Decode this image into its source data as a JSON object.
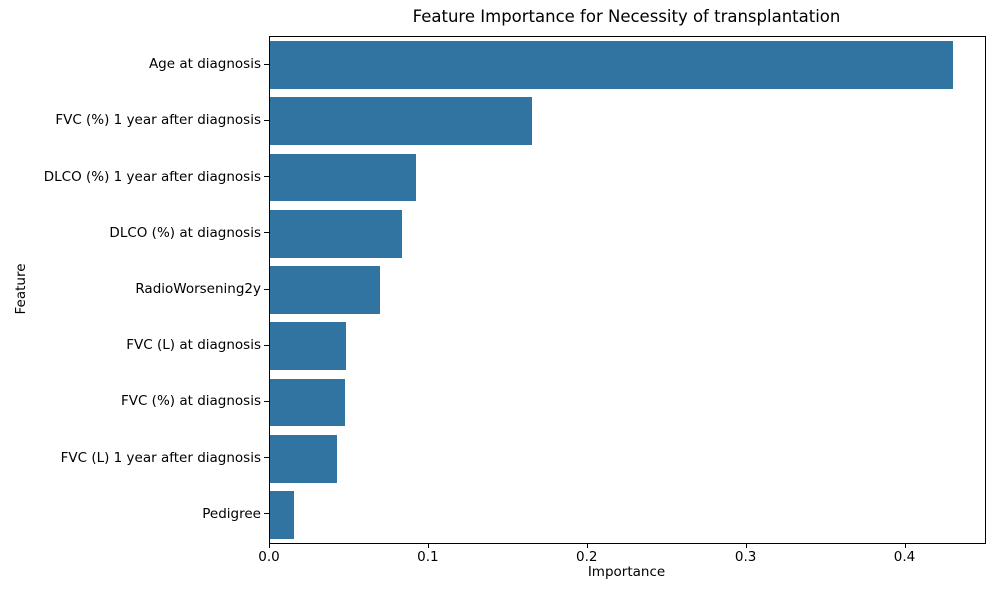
{
  "chart_data": {
    "type": "bar",
    "orientation": "horizontal",
    "title": "Feature Importance for Necessity of transplantation",
    "xlabel": "Importance",
    "ylabel": "Feature",
    "categories": [
      "Age at diagnosis",
      "FVC (%) 1 year after diagnosis",
      "DLCO (%) 1 year after diagnosis",
      "DLCO (%) at diagnosis",
      "RadioWorsening2y",
      "FVC (L) at diagnosis",
      "FVC (%) at diagnosis",
      "FVC (L) 1 year after diagnosis",
      "Pedigree"
    ],
    "values": [
      0.43,
      0.165,
      0.092,
      0.083,
      0.069,
      0.048,
      0.047,
      0.042,
      0.015
    ],
    "xlim": [
      0,
      0.45
    ],
    "xticks": [
      0.0,
      0.1,
      0.2,
      0.3,
      0.4
    ],
    "xtick_labels": [
      "0.0",
      "0.1",
      "0.2",
      "0.3",
      "0.4"
    ],
    "bar_color": "#3274a1",
    "axis_color": "#000000",
    "background_color": "#ffffff",
    "grid": false,
    "legend": null
  }
}
